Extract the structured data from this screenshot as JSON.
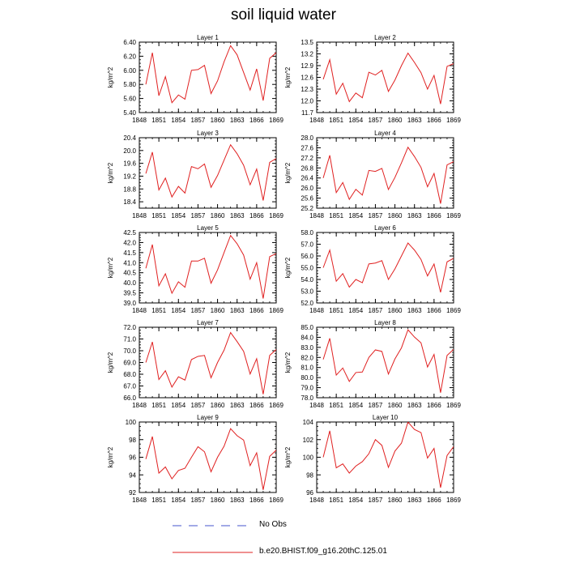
{
  "title": "soil liquid water",
  "legend": {
    "items": [
      {
        "label": "No Obs",
        "color": "#4455cc",
        "style": "dashed"
      },
      {
        "label": "b.e20.BHIST.f09_g16.20thC.125.01",
        "color": "#e02020",
        "style": "solid"
      }
    ]
  },
  "chart_data": [
    {
      "type": "line",
      "title": "Layer 1",
      "ylabel": "kg/m^2",
      "xlim": [
        1848,
        1869
      ],
      "xticks": [
        "1848",
        "1851",
        "1854",
        "1857",
        "1860",
        "1863",
        "1866",
        "1869"
      ],
      "ylim": [
        5.4,
        6.4
      ],
      "yticks": [
        "5.40",
        "5.60",
        "5.80",
        "6.00",
        "6.20",
        "6.40"
      ],
      "series": [
        {
          "color": "#e02020",
          "x": [
            1849,
            1850,
            1851,
            1852,
            1853,
            1854,
            1855,
            1856,
            1857,
            1858,
            1859,
            1860,
            1861,
            1862,
            1863,
            1864,
            1865,
            1866,
            1867,
            1868,
            1869
          ],
          "y": [
            5.8,
            6.25,
            5.64,
            5.91,
            5.54,
            5.65,
            5.59,
            6.0,
            6.01,
            6.07,
            5.67,
            5.85,
            6.12,
            6.35,
            6.22,
            5.97,
            5.72,
            6.02,
            5.57,
            6.17,
            6.25
          ]
        }
      ]
    },
    {
      "type": "line",
      "title": "Layer 2",
      "ylabel": "kg/m^2",
      "xlim": [
        1848,
        1869
      ],
      "xticks": [
        "1848",
        "1851",
        "1854",
        "1857",
        "1860",
        "1863",
        "1866",
        "1869"
      ],
      "ylim": [
        11.7,
        13.5
      ],
      "yticks": [
        "11.7",
        "12.0",
        "12.3",
        "12.6",
        "12.9",
        "13.2",
        "13.5"
      ],
      "series": [
        {
          "color": "#e02020",
          "x": [
            1849,
            1850,
            1851,
            1852,
            1853,
            1854,
            1855,
            1856,
            1857,
            1858,
            1859,
            1860,
            1861,
            1862,
            1863,
            1864,
            1865,
            1866,
            1867,
            1868,
            1869
          ],
          "y": [
            12.55,
            13.05,
            12.17,
            12.45,
            11.98,
            12.2,
            12.08,
            12.73,
            12.66,
            12.78,
            12.24,
            12.53,
            12.9,
            13.22,
            12.98,
            12.72,
            12.3,
            12.65,
            11.92,
            12.88,
            12.95
          ]
        }
      ]
    },
    {
      "type": "line",
      "title": "Layer 3",
      "ylabel": "kg/m^2",
      "xlim": [
        1848,
        1869
      ],
      "xticks": [
        "1848",
        "1851",
        "1854",
        "1857",
        "1860",
        "1863",
        "1866",
        "1869"
      ],
      "ylim": [
        18.2,
        20.4
      ],
      "yticks": [
        "18.4",
        "18.8",
        "19.2",
        "19.6",
        "20.0",
        "20.4"
      ],
      "series": [
        {
          "color": "#e02020",
          "x": [
            1849,
            1850,
            1851,
            1852,
            1853,
            1854,
            1855,
            1856,
            1857,
            1858,
            1859,
            1860,
            1861,
            1862,
            1863,
            1864,
            1865,
            1866,
            1867,
            1868,
            1869
          ],
          "y": [
            19.28,
            19.95,
            18.77,
            19.14,
            18.55,
            18.88,
            18.67,
            19.5,
            19.43,
            19.58,
            18.85,
            19.22,
            19.7,
            20.18,
            19.9,
            19.54,
            18.93,
            19.42,
            18.44,
            19.63,
            19.75
          ]
        }
      ]
    },
    {
      "type": "line",
      "title": "Layer 4",
      "ylabel": "kg/m^2",
      "xlim": [
        1848,
        1869
      ],
      "xticks": [
        "1848",
        "1851",
        "1854",
        "1857",
        "1860",
        "1863",
        "1866",
        "1869"
      ],
      "ylim": [
        25.2,
        28.0
      ],
      "yticks": [
        "25.2",
        "25.6",
        "26.0",
        "26.4",
        "26.8",
        "27.2",
        "27.6",
        "28.0"
      ],
      "series": [
        {
          "color": "#e02020",
          "x": [
            1849,
            1850,
            1851,
            1852,
            1853,
            1854,
            1855,
            1856,
            1857,
            1858,
            1859,
            1860,
            1861,
            1862,
            1863,
            1864,
            1865,
            1866,
            1867,
            1868,
            1869
          ],
          "y": [
            26.4,
            27.3,
            25.82,
            26.22,
            25.55,
            25.95,
            25.72,
            26.7,
            26.66,
            26.78,
            25.94,
            26.42,
            27.0,
            27.62,
            27.25,
            26.82,
            26.05,
            26.58,
            25.38,
            26.92,
            27.05
          ]
        }
      ]
    },
    {
      "type": "line",
      "title": "Layer 5",
      "ylabel": "kg/m^2",
      "xlim": [
        1848,
        1869
      ],
      "xticks": [
        "1848",
        "1851",
        "1854",
        "1857",
        "1860",
        "1863",
        "1866",
        "1869"
      ],
      "ylim": [
        39.0,
        42.5
      ],
      "yticks": [
        "39.0",
        "39.5",
        "40.0",
        "40.5",
        "41.0",
        "41.5",
        "42.0",
        "42.5"
      ],
      "series": [
        {
          "color": "#e02020",
          "x": [
            1849,
            1850,
            1851,
            1852,
            1853,
            1854,
            1855,
            1856,
            1857,
            1858,
            1859,
            1860,
            1861,
            1862,
            1863,
            1864,
            1865,
            1866,
            1867,
            1868,
            1869
          ],
          "y": [
            40.72,
            41.9,
            39.85,
            40.45,
            39.48,
            40.05,
            39.78,
            41.08,
            41.08,
            41.22,
            39.98,
            40.64,
            41.5,
            42.35,
            41.94,
            41.38,
            40.18,
            41.0,
            39.22,
            41.3,
            41.45
          ]
        }
      ]
    },
    {
      "type": "line",
      "title": "Layer 6",
      "ylabel": "kg/m^2",
      "xlim": [
        1848,
        1869
      ],
      "xticks": [
        "1848",
        "1851",
        "1854",
        "1857",
        "1860",
        "1863",
        "1866",
        "1869"
      ],
      "ylim": [
        52.0,
        58.0
      ],
      "yticks": [
        "52.0",
        "53.0",
        "54.0",
        "55.0",
        "56.0",
        "57.0",
        "58.0"
      ],
      "series": [
        {
          "color": "#e02020",
          "x": [
            1849,
            1850,
            1851,
            1852,
            1853,
            1854,
            1855,
            1856,
            1857,
            1858,
            1859,
            1860,
            1861,
            1862,
            1863,
            1864,
            1865,
            1866,
            1867,
            1868,
            1869
          ],
          "y": [
            55.0,
            56.5,
            53.85,
            54.5,
            53.35,
            54.0,
            53.72,
            55.32,
            55.4,
            55.6,
            54.0,
            54.9,
            56.0,
            57.1,
            56.5,
            55.7,
            54.3,
            55.32,
            52.9,
            55.5,
            55.8
          ]
        }
      ]
    },
    {
      "type": "line",
      "title": "Layer 7",
      "ylabel": "kg/m^2",
      "xlim": [
        1848,
        1869
      ],
      "xticks": [
        "1848",
        "1851",
        "1854",
        "1857",
        "1860",
        "1863",
        "1866",
        "1869"
      ],
      "ylim": [
        66.0,
        72.0
      ],
      "yticks": [
        "66.0",
        "67.0",
        "68.0",
        "69.0",
        "70.0",
        "71.0",
        "72.0"
      ],
      "series": [
        {
          "color": "#e02020",
          "x": [
            1849,
            1850,
            1851,
            1852,
            1853,
            1854,
            1855,
            1856,
            1857,
            1858,
            1859,
            1860,
            1861,
            1862,
            1863,
            1864,
            1865,
            1866,
            1867,
            1868,
            1869
          ],
          "y": [
            69.0,
            70.75,
            67.55,
            68.3,
            66.9,
            67.78,
            67.5,
            69.25,
            69.52,
            69.6,
            67.7,
            69.0,
            70.05,
            71.55,
            70.78,
            69.95,
            68.02,
            69.32,
            66.3,
            69.6,
            70.1
          ]
        }
      ]
    },
    {
      "type": "line",
      "title": "Layer 8",
      "ylabel": "kg/m^2",
      "xlim": [
        1848,
        1869
      ],
      "xticks": [
        "1848",
        "1851",
        "1854",
        "1857",
        "1860",
        "1863",
        "1866",
        "1869"
      ],
      "ylim": [
        78.0,
        85.0
      ],
      "yticks": [
        "78.0",
        "79.0",
        "80.0",
        "81.0",
        "82.0",
        "83.0",
        "84.0",
        "85.0"
      ],
      "series": [
        {
          "color": "#e02020",
          "x": [
            1849,
            1850,
            1851,
            1852,
            1853,
            1854,
            1855,
            1856,
            1857,
            1858,
            1859,
            1860,
            1861,
            1862,
            1863,
            1864,
            1865,
            1866,
            1867,
            1868,
            1869
          ],
          "y": [
            81.8,
            83.9,
            80.25,
            80.95,
            79.62,
            80.5,
            80.55,
            82.0,
            82.75,
            82.6,
            80.35,
            81.85,
            82.95,
            84.75,
            84.02,
            83.45,
            81.05,
            82.3,
            78.5,
            82.2,
            82.8
          ]
        }
      ]
    },
    {
      "type": "line",
      "title": "Layer 9",
      "ylabel": "kg/m^2",
      "xlim": [
        1848,
        1869
      ],
      "xticks": [
        "1848",
        "1851",
        "1854",
        "1857",
        "1860",
        "1863",
        "1866",
        "1869"
      ],
      "ylim": [
        92,
        100
      ],
      "yticks": [
        "92",
        "94",
        "96",
        "98",
        "100"
      ],
      "series": [
        {
          "color": "#e02020",
          "x": [
            1849,
            1850,
            1851,
            1852,
            1853,
            1854,
            1855,
            1856,
            1857,
            1858,
            1859,
            1860,
            1861,
            1862,
            1863,
            1864,
            1865,
            1866,
            1867,
            1868,
            1869
          ],
          "y": [
            95.8,
            98.35,
            94.2,
            94.9,
            93.55,
            94.5,
            94.75,
            96.0,
            97.2,
            96.62,
            94.35,
            96.0,
            97.25,
            99.25,
            98.45,
            97.95,
            95.05,
            96.5,
            92.3,
            96.1,
            96.8
          ]
        }
      ]
    },
    {
      "type": "line",
      "title": "Layer 10",
      "ylabel": "kg/m^2",
      "xlim": [
        1848,
        1869
      ],
      "xticks": [
        "1848",
        "1851",
        "1854",
        "1857",
        "1860",
        "1863",
        "1866",
        "1869"
      ],
      "ylim": [
        96,
        104
      ],
      "yticks": [
        "96",
        "98",
        "100",
        "102",
        "104"
      ],
      "series": [
        {
          "color": "#e02020",
          "x": [
            1849,
            1850,
            1851,
            1852,
            1853,
            1854,
            1855,
            1856,
            1857,
            1858,
            1859,
            1860,
            1861,
            1862,
            1863,
            1864,
            1865,
            1866,
            1867,
            1868,
            1869
          ],
          "y": [
            100.0,
            103.0,
            98.8,
            99.25,
            98.2,
            99.0,
            99.5,
            100.4,
            102.0,
            101.35,
            98.85,
            100.7,
            101.6,
            104.0,
            103.15,
            102.8,
            99.9,
            101.0,
            96.55,
            100.2,
            101.2
          ]
        }
      ]
    }
  ]
}
